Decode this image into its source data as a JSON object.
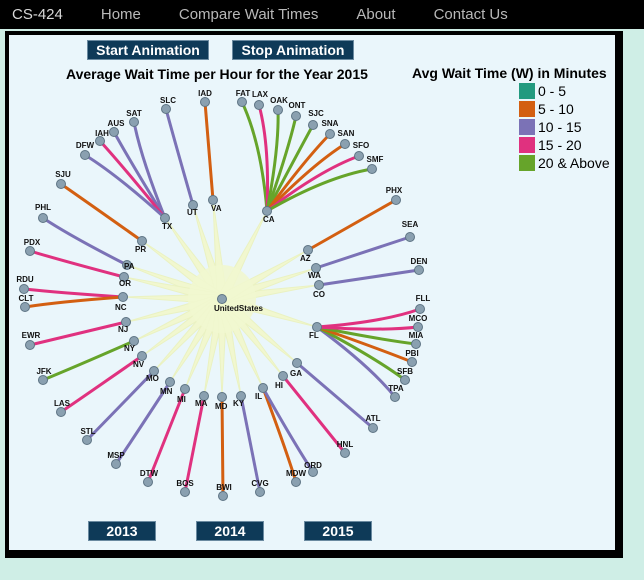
{
  "nav": {
    "brand": "CS-424",
    "links": [
      "Home",
      "Compare Wait Times",
      "About",
      "Contact Us"
    ]
  },
  "controls": {
    "start": "Start Animation",
    "stop": "Stop Animation",
    "years": [
      "2013",
      "2014",
      "2015"
    ]
  },
  "chart": {
    "title": "Average Wait Time per Hour for the Year 2015"
  },
  "legend": {
    "title": "Avg Wait Time (W) in Minutes",
    "items": [
      {
        "label": "0 - 5",
        "color": "#229a7f"
      },
      {
        "label": "5 - 10",
        "color": "#d35f11"
      },
      {
        "label": "10 - 15",
        "color": "#7b72b6"
      },
      {
        "label": "15 - 20",
        "color": "#e0317f"
      },
      {
        "label": "20 & Above",
        "color": "#66a42a"
      }
    ]
  },
  "network": {
    "root": "UnitedStates",
    "states": [
      "TX",
      "UT",
      "VA",
      "CA",
      "PR",
      "PA",
      "OR",
      "NC",
      "NJ",
      "NY",
      "NV",
      "MO",
      "MN",
      "MI",
      "MA",
      "MD",
      "KY",
      "IL",
      "HI",
      "GA",
      "FL",
      "CO",
      "WA",
      "AZ"
    ],
    "airports": [
      {
        "code": "IAD",
        "state": "VA",
        "band": "5 - 10"
      },
      {
        "code": "SLC",
        "state": "UT",
        "band": "10 - 15"
      },
      {
        "code": "SAT",
        "state": "TX",
        "band": "10 - 15"
      },
      {
        "code": "AUS",
        "state": "TX",
        "band": "10 - 15"
      },
      {
        "code": "IAH",
        "state": "TX",
        "band": "15 - 20"
      },
      {
        "code": "DFW",
        "state": "TX",
        "band": "10 - 15"
      },
      {
        "code": "SJU",
        "state": "PR",
        "band": "5 - 10"
      },
      {
        "code": "PHL",
        "state": "PA",
        "band": "10 - 15"
      },
      {
        "code": "PDX",
        "state": "OR",
        "band": "15 - 20"
      },
      {
        "code": "RDU",
        "state": "NC",
        "band": "15 - 20"
      },
      {
        "code": "CLT",
        "state": "NC",
        "band": "5 - 10"
      },
      {
        "code": "EWR",
        "state": "NJ",
        "band": "15 - 20"
      },
      {
        "code": "JFK",
        "state": "NY",
        "band": "20 & Above"
      },
      {
        "code": "LAS",
        "state": "NV",
        "band": "15 - 20"
      },
      {
        "code": "STL",
        "state": "MO",
        "band": "10 - 15"
      },
      {
        "code": "MSP",
        "state": "MN",
        "band": "10 - 15"
      },
      {
        "code": "DTW",
        "state": "MI",
        "band": "15 - 20"
      },
      {
        "code": "BOS",
        "state": "MA",
        "band": "15 - 20"
      },
      {
        "code": "BWI",
        "state": "MD",
        "band": "5 - 10"
      },
      {
        "code": "CVG",
        "state": "KY",
        "band": "10 - 15"
      },
      {
        "code": "MDW",
        "state": "IL",
        "band": "5 - 10"
      },
      {
        "code": "ORD",
        "state": "IL",
        "band": "10 - 15"
      },
      {
        "code": "HNL",
        "state": "HI",
        "band": "15 - 20"
      },
      {
        "code": "ATL",
        "state": "GA",
        "band": "10 - 15"
      },
      {
        "code": "TPA",
        "state": "FL",
        "band": "10 - 15"
      },
      {
        "code": "SFB",
        "state": "FL",
        "band": "20 & Above"
      },
      {
        "code": "PBI",
        "state": "FL",
        "band": "5 - 10"
      },
      {
        "code": "MIA",
        "state": "FL",
        "band": "20 & Above"
      },
      {
        "code": "MCO",
        "state": "FL",
        "band": "15 - 20"
      },
      {
        "code": "FLL",
        "state": "FL",
        "band": "15 - 20"
      },
      {
        "code": "DEN",
        "state": "CO",
        "band": "10 - 15"
      },
      {
        "code": "SEA",
        "state": "WA",
        "band": "10 - 15"
      },
      {
        "code": "PHX",
        "state": "AZ",
        "band": "5 - 10"
      },
      {
        "code": "FAT",
        "state": "CA",
        "band": "20 & Above"
      },
      {
        "code": "LAX",
        "state": "CA",
        "band": "15 - 20"
      },
      {
        "code": "OAK",
        "state": "CA",
        "band": "20 & Above"
      },
      {
        "code": "ONT",
        "state": "CA",
        "band": "20 & Above"
      },
      {
        "code": "SJC",
        "state": "CA",
        "band": "20 & Above"
      },
      {
        "code": "SNA",
        "state": "CA",
        "band": "5 - 10"
      },
      {
        "code": "SAN",
        "state": "CA",
        "band": "5 - 10"
      },
      {
        "code": "SFO",
        "state": "CA",
        "band": "15 - 20"
      },
      {
        "code": "SMF",
        "state": "CA",
        "band": "20 & Above"
      }
    ]
  }
}
